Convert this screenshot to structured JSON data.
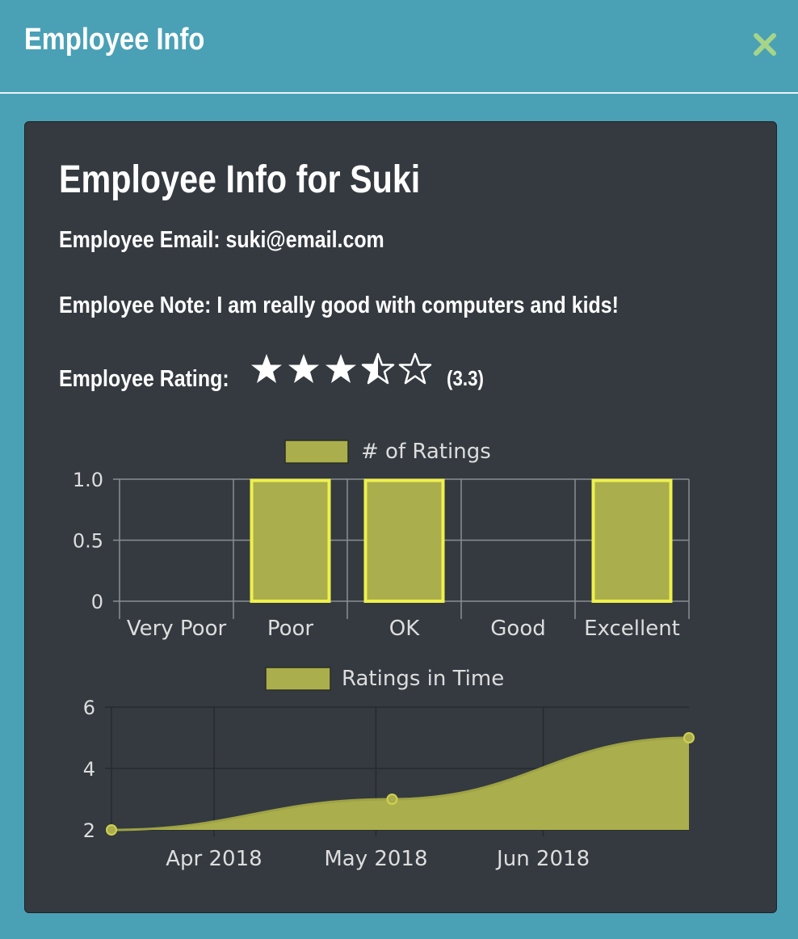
{
  "modal": {
    "title": "Employee Info"
  },
  "employee": {
    "heading": "Employee Info for Suki",
    "email_line": "Employee Email: suki@email.com",
    "note_line": "Employee Note: I am really good with computers and kids!",
    "rating_label": "Employee Rating:",
    "rating_value": 3.3,
    "rating_text": "(3.3)",
    "stars": [
      "full",
      "full",
      "full",
      "half",
      "empty"
    ]
  },
  "colors": {
    "background": "#4aa1b6",
    "card": "#343a40",
    "bar_fill": "#abae4c",
    "bar_border": "#eef04c",
    "close_icon": "#a6d58a"
  },
  "chart_data": [
    {
      "type": "bar",
      "legend": "# of Ratings",
      "categories": [
        "Very Poor",
        "Poor",
        "OK",
        "Good",
        "Excellent"
      ],
      "values": [
        0,
        1,
        1,
        0,
        1
      ],
      "ylim": [
        0,
        1
      ],
      "yticks": [
        "1.0",
        "0.5",
        "0"
      ],
      "grid": true,
      "legend_position": "top"
    },
    {
      "type": "area",
      "legend": "Ratings in Time",
      "x": [
        "2018-03-13",
        "2018-05-04",
        "2018-06-28"
      ],
      "values": [
        2,
        3,
        5
      ],
      "xticks": [
        "Apr 2018",
        "May 2018",
        "Jun 2018"
      ],
      "ylim": [
        2,
        6
      ],
      "yticks": [
        "6",
        "4",
        "2"
      ],
      "grid": true,
      "legend_position": "top"
    }
  ]
}
